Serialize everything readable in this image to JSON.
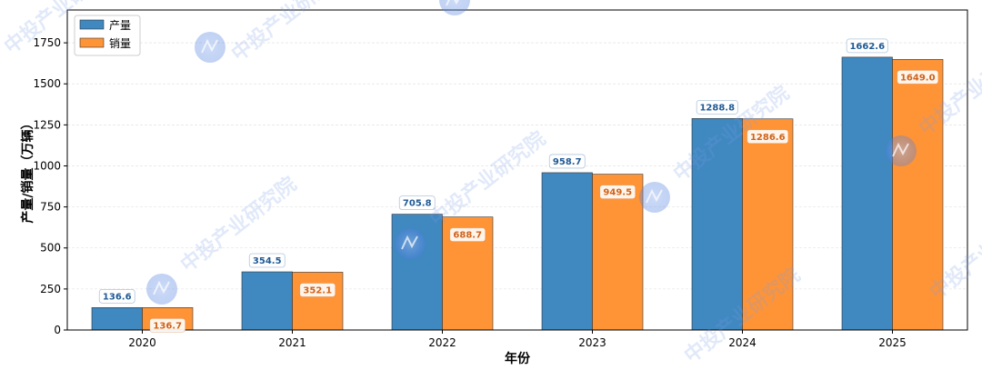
{
  "chart_data": {
    "type": "bar",
    "categories": [
      "2020",
      "2021",
      "2022",
      "2023",
      "2024",
      "2025"
    ],
    "series": [
      {
        "name": "产量",
        "values": [
          136.6,
          354.5,
          705.8,
          958.7,
          1288.8,
          1662.6
        ],
        "color": "#3f88c0",
        "label_color": "#1f5a96"
      },
      {
        "name": "销量",
        "values": [
          136.7,
          352.1,
          688.7,
          949.5,
          1286.6,
          1649.0
        ],
        "color": "#ff9437",
        "label_color": "#d0621a"
      }
    ],
    "value_labels": [
      [
        "136.6",
        "354.5",
        "705.8",
        "958.7",
        "1288.8",
        "1662.6"
      ],
      [
        "136.7",
        "352.1",
        "688.7",
        "949.5",
        "1286.6",
        "1649.0"
      ]
    ],
    "xlabel": "年份",
    "ylabel": "产量/销量（万辆）",
    "ylim": [
      0,
      1950
    ],
    "yticks": [
      0,
      250,
      500,
      750,
      1000,
      1250,
      1500,
      1750
    ],
    "grid": true,
    "legend_position": "top-left",
    "watermark": "中投产业研究院"
  }
}
